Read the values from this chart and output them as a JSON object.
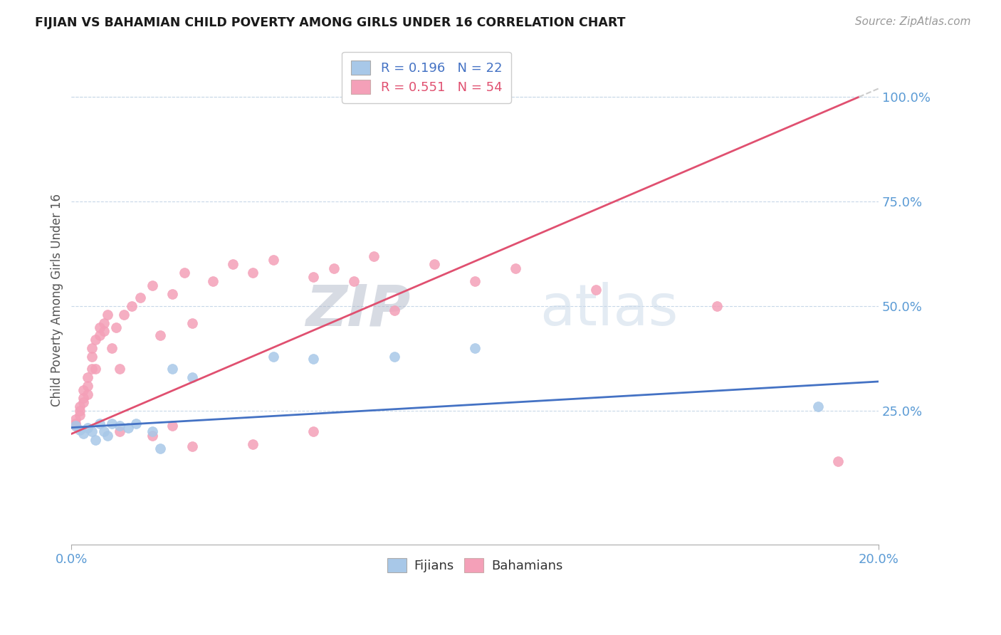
{
  "title": "FIJIAN VS BAHAMIAN CHILD POVERTY AMONG GIRLS UNDER 16 CORRELATION CHART",
  "source_text": "Source: ZipAtlas.com",
  "ylabel": "Child Poverty Among Girls Under 16",
  "ytick_labels": [
    "25.0%",
    "50.0%",
    "75.0%",
    "100.0%"
  ],
  "ytick_values": [
    0.25,
    0.5,
    0.75,
    1.0
  ],
  "xlim": [
    0.0,
    0.2
  ],
  "ylim": [
    -0.07,
    1.1
  ],
  "fijians_color": "#a8c8e8",
  "bahamians_color": "#f4a0b8",
  "fijians_line_color": "#4472c4",
  "bahamians_line_color": "#e05070",
  "legend_top_labels": [
    "R = 0.196   N = 22",
    "R = 0.551   N = 54"
  ],
  "legend_bottom_labels": [
    "Fijians",
    "Bahamians"
  ],
  "watermark_zip": "ZIP",
  "watermark_atlas": "atlas",
  "background_color": "#ffffff",
  "grid_color": "#c8d8e8",
  "title_color": "#1a1a1a",
  "source_color": "#999999",
  "axis_label_color": "#555555",
  "tick_color": "#5b9bd5",
  "fijians_x": [
    0.001,
    0.002,
    0.003,
    0.004,
    0.005,
    0.006,
    0.007,
    0.008,
    0.009,
    0.01,
    0.012,
    0.014,
    0.016,
    0.02,
    0.022,
    0.025,
    0.03,
    0.05,
    0.06,
    0.08,
    0.1,
    0.185
  ],
  "fijians_y": [
    0.215,
    0.205,
    0.195,
    0.21,
    0.2,
    0.18,
    0.22,
    0.2,
    0.19,
    0.22,
    0.215,
    0.21,
    0.22,
    0.2,
    0.16,
    0.35,
    0.33,
    0.38,
    0.375,
    0.38,
    0.4,
    0.26
  ],
  "bahamians_x": [
    0.001,
    0.001,
    0.001,
    0.002,
    0.002,
    0.002,
    0.003,
    0.003,
    0.003,
    0.004,
    0.004,
    0.004,
    0.005,
    0.005,
    0.005,
    0.006,
    0.006,
    0.007,
    0.007,
    0.008,
    0.008,
    0.009,
    0.01,
    0.011,
    0.012,
    0.013,
    0.015,
    0.017,
    0.02,
    0.022,
    0.025,
    0.028,
    0.03,
    0.035,
    0.04,
    0.045,
    0.05,
    0.06,
    0.065,
    0.07,
    0.075,
    0.08,
    0.09,
    0.1,
    0.11,
    0.13,
    0.16,
    0.19,
    0.025,
    0.012,
    0.02,
    0.03,
    0.045,
    0.06
  ],
  "bahamians_y": [
    0.215,
    0.22,
    0.23,
    0.24,
    0.25,
    0.26,
    0.28,
    0.3,
    0.27,
    0.29,
    0.31,
    0.33,
    0.35,
    0.38,
    0.4,
    0.35,
    0.42,
    0.43,
    0.45,
    0.44,
    0.46,
    0.48,
    0.4,
    0.45,
    0.35,
    0.48,
    0.5,
    0.52,
    0.55,
    0.43,
    0.53,
    0.58,
    0.46,
    0.56,
    0.6,
    0.58,
    0.61,
    0.57,
    0.59,
    0.56,
    0.62,
    0.49,
    0.6,
    0.56,
    0.59,
    0.54,
    0.5,
    0.13,
    0.215,
    0.2,
    0.19,
    0.165,
    0.17,
    0.2
  ],
  "bah_line_x0": 0.0,
  "bah_line_y0": 0.195,
  "bah_line_x1": 0.2,
  "bah_line_y1": 1.02,
  "fij_line_x0": 0.0,
  "fij_line_y0": 0.21,
  "fij_line_x1": 0.2,
  "fij_line_y1": 0.32,
  "dashed_line_color": "#cccccc"
}
